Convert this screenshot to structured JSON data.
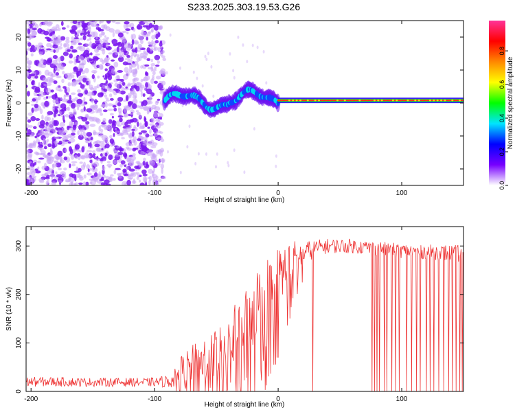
{
  "title": "S233.2025.303.19.53.G26",
  "colors": {
    "line": "#ee3333",
    "axis": "#000000"
  },
  "chart_data": [
    {
      "type": "heatmap",
      "xlabel": "Height of straight line (km)",
      "ylabel": "Frequency (Hz)",
      "xlim": [
        -204,
        150
      ],
      "ylim": [
        -25,
        25
      ],
      "xticks": [
        -200,
        -100,
        0,
        100
      ],
      "yticks": [
        -20,
        -10,
        0,
        10,
        20
      ],
      "colorbar": {
        "label": "Normalized spectral amplitude",
        "range": [
          0,
          0.98
        ],
        "ticks": [
          "0.0",
          "0.2",
          "0.4",
          "0.6",
          "0.8"
        ],
        "colormap": [
          "#ffffff",
          "#7700ff",
          "#0000ff",
          "#00e5ff",
          "#00ff00",
          "#ffff00",
          "#ff8800",
          "#ff0000",
          "#ff3399"
        ]
      },
      "regions": [
        {
          "name": "scattered noise",
          "x": [
            -204,
            -92
          ],
          "freq": [
            -25,
            25
          ],
          "amplitude": 0.05
        },
        {
          "name": "wandering signal",
          "x": [
            -92,
            0
          ],
          "freq_center": [
            0,
            3
          ],
          "amplitude": [
            0.2,
            0.4
          ]
        },
        {
          "name": "stable carrier",
          "x": [
            0,
            150
          ],
          "freq_center": 0.8,
          "amplitude": [
            0.6,
            0.98
          ]
        }
      ]
    },
    {
      "type": "line",
      "xlabel": "Height of straight line (km)",
      "ylabel": "SNR (10 * v/v)",
      "xlim": [
        -204,
        150
      ],
      "ylim": [
        0,
        340
      ],
      "xticks": [
        -200,
        -100,
        0,
        100
      ],
      "yticks": [
        0,
        100,
        200,
        300
      ],
      "series": [
        {
          "x": [
            -204,
            -180,
            -160,
            -140,
            -120,
            -100,
            -85,
            -80,
            -70,
            -60,
            -50,
            -40,
            -30,
            -20,
            -10,
            0,
            10,
            20,
            30,
            40,
            60,
            80,
            100,
            120,
            140,
            150
          ],
          "y_mean": [
            20,
            20,
            19,
            19,
            19,
            19,
            22,
            40,
            55,
            65,
            80,
            100,
            130,
            170,
            200,
            230,
            265,
            285,
            295,
            300,
            300,
            295,
            290,
            288,
            285,
            285
          ],
          "y_spread": [
            10,
            10,
            9,
            9,
            9,
            9,
            15,
            30,
            40,
            50,
            55,
            60,
            70,
            80,
            80,
            70,
            50,
            25,
            18,
            15,
            15,
            15,
            15,
            15,
            18,
            18
          ],
          "dropouts_x": [
            28,
            76,
            78,
            80,
            82,
            86,
            88,
            92,
            95,
            98,
            104,
            108,
            112,
            115,
            120,
            123,
            126,
            130,
            134,
            138,
            141,
            144,
            147,
            149
          ]
        }
      ]
    }
  ]
}
